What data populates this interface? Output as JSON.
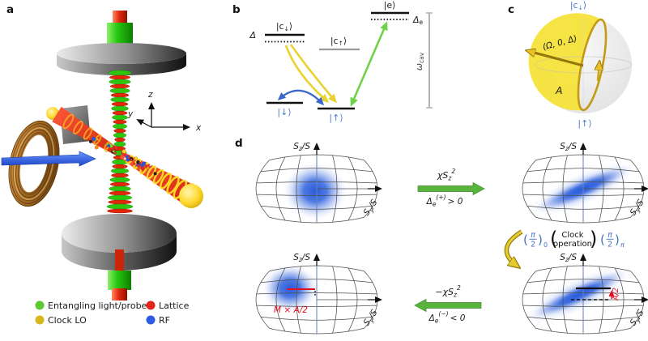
{
  "palette": {
    "entangling_green": "#5cc832",
    "clock_lo_yellow": "#d4b81e",
    "lattice_red": "#e3241a",
    "rf_blue": "#2c5be0",
    "state_label_blue": "#4b79c9",
    "pulse_blue": "#4472c4",
    "shear_arrow_green": "#58b43c",
    "bloch_gold": "#c39a16",
    "blob_blue": "#2456d8",
    "annotation_red": "#e01020"
  },
  "panel_a": {
    "label": "a",
    "axes": {
      "x": "x",
      "y": "y",
      "z": "z"
    },
    "legend": [
      {
        "label": "Entangling light/probe",
        "color": "#5cc832"
      },
      {
        "label": "Clock LO",
        "color": "#d4b81e"
      },
      {
        "label": "Lattice",
        "color": "#e3241a"
      },
      {
        "label": "RF",
        "color": "#2c5be0"
      }
    ]
  },
  "panel_b": {
    "label": "b",
    "delta": "Δ",
    "c_down": {
      "pre": "|c",
      "sub": "↓",
      "post": "⟩"
    },
    "c_up": {
      "pre": "|c",
      "sub": "↑",
      "post": "⟩"
    },
    "e": "|e⟩",
    "delta_e": {
      "pre": "Δ",
      "sub": "e"
    },
    "omega_cav": {
      "pre": "ω",
      "sub": "cav"
    },
    "down": "|↓⟩",
    "up": "|↑⟩"
  },
  "panel_c": {
    "label": "c",
    "top_state": {
      "pre": "|c",
      "sub": "↓",
      "post": "⟩"
    },
    "bottom_state": "|↑⟩",
    "rotation_vector": "(Ω, 0, Δ)",
    "area": "A"
  },
  "panel_d": {
    "label": "d",
    "axis_sz": {
      "pre": "S",
      "sub": "z",
      "post": "/S"
    },
    "axis_sy": {
      "pre": "S",
      "sub": "y",
      "post": "/S"
    },
    "shear_top": {
      "pre": "χS",
      "sub": "z",
      "sup": "2"
    },
    "det_top": {
      "pre": "Δ",
      "sub": "e",
      "sup": "(+)",
      "rest": "> 0"
    },
    "shear_bottom": {
      "pre": "−χS",
      "sub": "z",
      "sup": "2"
    },
    "det_bottom": {
      "pre": "Δ",
      "sub": "e",
      "sup": "(−)",
      "rest": "< 0"
    },
    "clock": {
      "open": "(",
      "close": ")",
      "pulse1": {
        "num": "π",
        "den": "2",
        "sub": "0"
      },
      "pulse2": {
        "num": "π",
        "den": "2",
        "sub": "π"
      },
      "op1": "Clock",
      "op2": "operation"
    },
    "ann_half_area": "A/2",
    "ann_m_half_area": "M × A/2"
  }
}
